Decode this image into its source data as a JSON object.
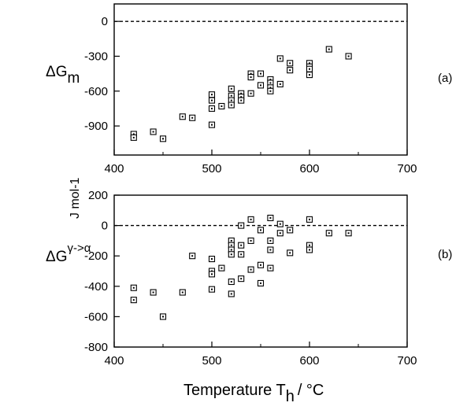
{
  "chart_data": [
    {
      "type": "scatter",
      "panel_label": "(a)",
      "ylabel": {
        "base": "ΔG",
        "sub": "m"
      },
      "xlim": [
        400,
        700
      ],
      "ylim": [
        -1150,
        150
      ],
      "xticks": [
        "400",
        "500",
        "600",
        "700"
      ],
      "yticks": [
        "0",
        "-300",
        "-600",
        "-900"
      ],
      "ytick_values": [
        0,
        -300,
        -600,
        -900
      ],
      "xtick_values": [
        400,
        500,
        600,
        700
      ],
      "reference_line": 0,
      "grid": false,
      "series": [
        {
          "marker": "square",
          "points": [
            [
              420,
              -970
            ],
            [
              420,
              -1000
            ],
            [
              440,
              -950
            ],
            [
              450,
              -1010
            ],
            [
              470,
              -820
            ],
            [
              480,
              -830
            ],
            [
              500,
              -630
            ],
            [
              500,
              -680
            ],
            [
              500,
              -750
            ],
            [
              500,
              -890
            ],
            [
              510,
              -730
            ],
            [
              520,
              -580
            ],
            [
              520,
              -640
            ],
            [
              520,
              -680
            ],
            [
              520,
              -720
            ],
            [
              530,
              -620
            ],
            [
              530,
              -650
            ],
            [
              530,
              -680
            ],
            [
              540,
              -450
            ],
            [
              540,
              -480
            ],
            [
              540,
              -620
            ],
            [
              550,
              -450
            ],
            [
              550,
              -550
            ],
            [
              560,
              -500
            ],
            [
              560,
              -530
            ],
            [
              560,
              -570
            ],
            [
              560,
              -600
            ],
            [
              570,
              -320
            ],
            [
              570,
              -540
            ],
            [
              580,
              -360
            ],
            [
              580,
              -420
            ],
            [
              600,
              -360
            ],
            [
              600,
              -390
            ],
            [
              600,
              -410
            ],
            [
              600,
              -460
            ],
            [
              620,
              -240
            ],
            [
              640,
              -300
            ]
          ]
        }
      ]
    },
    {
      "type": "scatter",
      "panel_label": "(b)",
      "ylabel": {
        "base": "ΔG",
        "sup": "γ->α"
      },
      "xlim": [
        400,
        700
      ],
      "ylim": [
        -800,
        200
      ],
      "xticks": [
        "400",
        "500",
        "600",
        "700"
      ],
      "yticks": [
        "200",
        "0",
        "-200",
        "-400",
        "-600",
        "-800"
      ],
      "ytick_values": [
        200,
        0,
        -200,
        -400,
        -600,
        -800
      ],
      "xtick_values": [
        400,
        500,
        600,
        700
      ],
      "reference_line": 0,
      "grid": false,
      "series": [
        {
          "marker": "square",
          "points": [
            [
              420,
              -410
            ],
            [
              420,
              -490
            ],
            [
              440,
              -440
            ],
            [
              450,
              -600
            ],
            [
              470,
              -440
            ],
            [
              480,
              -200
            ],
            [
              500,
              -220
            ],
            [
              500,
              -300
            ],
            [
              500,
              -320
            ],
            [
              500,
              -420
            ],
            [
              510,
              -280
            ],
            [
              520,
              -100
            ],
            [
              520,
              -130
            ],
            [
              520,
              -160
            ],
            [
              520,
              -190
            ],
            [
              520,
              -370
            ],
            [
              520,
              -450
            ],
            [
              530,
              0
            ],
            [
              530,
              -130
            ],
            [
              530,
              -190
            ],
            [
              530,
              -350
            ],
            [
              540,
              40
            ],
            [
              540,
              -100
            ],
            [
              540,
              -290
            ],
            [
              550,
              -30
            ],
            [
              550,
              -260
            ],
            [
              550,
              -380
            ],
            [
              560,
              50
            ],
            [
              560,
              -100
            ],
            [
              560,
              -160
            ],
            [
              560,
              -280
            ],
            [
              570,
              10
            ],
            [
              570,
              -50
            ],
            [
              580,
              -30
            ],
            [
              580,
              -180
            ],
            [
              600,
              40
            ],
            [
              600,
              -130
            ],
            [
              600,
              -160
            ],
            [
              620,
              -50
            ],
            [
              640,
              -50
            ]
          ]
        }
      ]
    }
  ],
  "shared_ylabel": "J mol-1",
  "shared_xlabel": {
    "base": "Temperature T",
    "sub": "h",
    "tail": "/ °C"
  }
}
